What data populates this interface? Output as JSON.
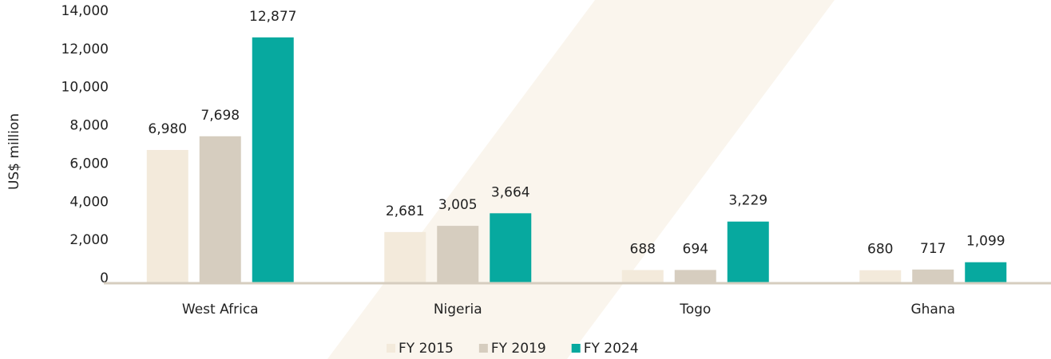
{
  "chart_data": {
    "type": "bar",
    "ylabel": "US$ million",
    "categories": [
      "West Africa",
      "Nigeria",
      "Togo",
      "Ghana"
    ],
    "series": [
      {
        "name": "FY 2015",
        "color": "#f3eadb",
        "values": [
          6980,
          2681,
          688,
          680
        ],
        "value_labels": [
          "6,980",
          "2,681",
          "688",
          "680"
        ]
      },
      {
        "name": "FY 2019",
        "color": "#d6cdbf",
        "values": [
          7698,
          3005,
          694,
          717
        ],
        "value_labels": [
          "7,698",
          "3,005",
          "694",
          "717"
        ]
      },
      {
        "name": "FY 2024",
        "color": "#07a99f",
        "values": [
          12877,
          3664,
          3229,
          1099
        ],
        "value_labels": [
          "12,877",
          "3,664",
          "3,229",
          "1,099"
        ]
      }
    ],
    "ylim": [
      0,
      14000
    ],
    "yticks": [
      {
        "value": 0,
        "label": "0"
      },
      {
        "value": 2000,
        "label": "2,000"
      },
      {
        "value": 4000,
        "label": "4,000"
      },
      {
        "value": 6000,
        "label": "6,000"
      },
      {
        "value": 8000,
        "label": "8,000"
      },
      {
        "value": 10000,
        "label": "10,000"
      },
      {
        "value": 12000,
        "label": "12,000"
      },
      {
        "value": 14000,
        "label": "14,000"
      }
    ],
    "legend": "bottom"
  }
}
